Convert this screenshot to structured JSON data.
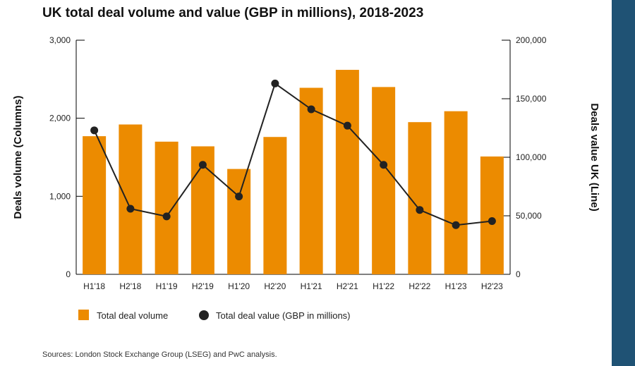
{
  "title": "UK total deal volume and value (GBP in millions), 2018-2023",
  "source": "Sources: London Stock Exchange Group (LSEG) and PwC analysis.",
  "colors": {
    "bar": "#ec8b00",
    "line": "#222222",
    "band": "#1f5274"
  },
  "chart_data": {
    "type": "bar",
    "categories": [
      "H1'18",
      "H2'18",
      "H1'19",
      "H2'19",
      "H1'20",
      "H2'20",
      "H1'21",
      "H2'21",
      "H1'22",
      "H2'22",
      "H1'23",
      "H2'23"
    ],
    "series": [
      {
        "name": "Total deal volume",
        "type": "bar",
        "axis": "left",
        "values": [
          1770,
          1920,
          1700,
          1640,
          1350,
          1760,
          2390,
          2620,
          2400,
          1950,
          2090,
          1510
        ]
      },
      {
        "name": "Total deal value (GBP in millions)",
        "type": "line",
        "axis": "right",
        "values": [
          123000,
          56000,
          49500,
          93500,
          66500,
          163000,
          141000,
          127000,
          93500,
          55000,
          42000,
          45500
        ]
      }
    ],
    "ylabel": "Deals volume (Columns)",
    "y2label": "Deals value UK (Line)",
    "ylim": [
      0,
      3000
    ],
    "y2lim": [
      0,
      200000
    ],
    "yticks": [
      "0",
      "1,000",
      "2,000",
      "3,000"
    ],
    "y2ticks": [
      "0",
      "50,000",
      "100,000",
      "150,000",
      "200,000"
    ],
    "legend": {
      "position": "bottom-left",
      "items": [
        "Total deal volume",
        "Total deal value (GBP in millions)"
      ]
    },
    "grid": false
  }
}
